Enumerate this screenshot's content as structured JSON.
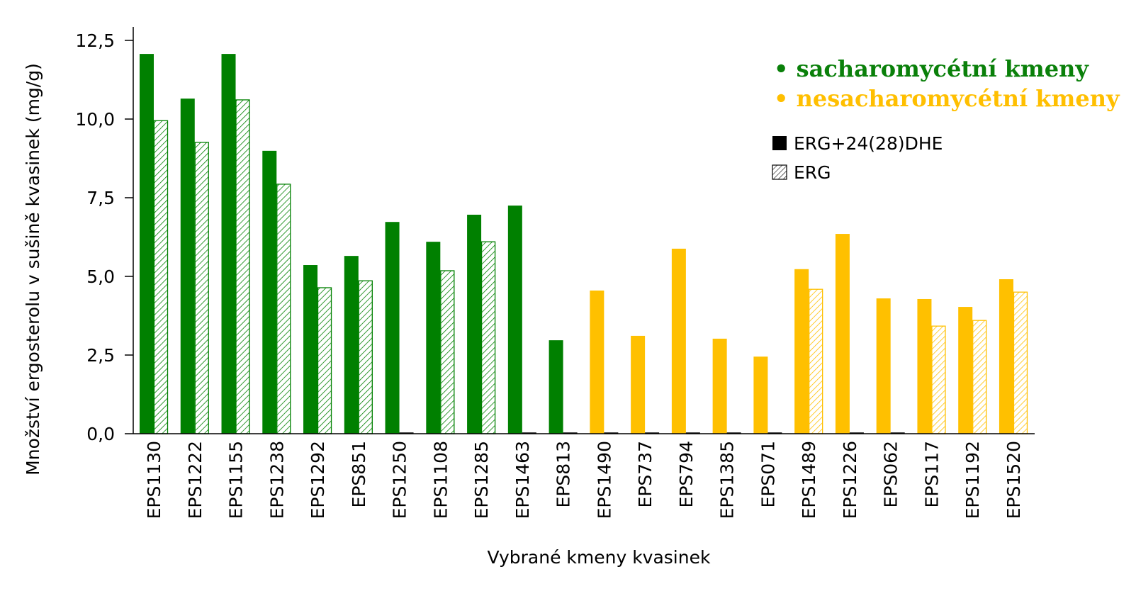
{
  "chart_data": {
    "type": "bar",
    "title": "",
    "xlabel": "Vybrané kmeny kvasinek",
    "ylabel": "Množství ergosterolu v sušině kvasinek (mg/g)",
    "ylim": [
      0,
      12.5
    ],
    "yticks": [
      "0,0",
      "2,5",
      "5,0",
      "7,5",
      "10,0",
      "12,5"
    ],
    "ytick_values": [
      0,
      2.5,
      5,
      7.5,
      10,
      12.5
    ],
    "grid": false,
    "categories": [
      "EPS1130",
      "EPS1222",
      "EPS1155",
      "EPS1238",
      "EPS1292",
      "EPS851",
      "EPS1250",
      "EPS1108",
      "EPS1285",
      "EPS1463",
      "EPS813",
      "EPS1490",
      "EPS737",
      "EPS794",
      "EPS1385",
      "EPS071",
      "EPS1489",
      "EPS1226",
      "EPS062",
      "EPS117",
      "EPS1192",
      "EPS1520"
    ],
    "group": [
      "s",
      "s",
      "s",
      "s",
      "s",
      "s",
      "s",
      "s",
      "s",
      "s",
      "s",
      "n",
      "n",
      "n",
      "n",
      "n",
      "n",
      "n",
      "n",
      "n",
      "n",
      "n"
    ],
    "series": [
      {
        "name": "ERG+24(28)DHE",
        "pattern": "solid",
        "values": [
          12.07,
          10.65,
          12.07,
          8.99,
          5.36,
          5.65,
          6.73,
          6.1,
          6.96,
          7.25,
          2.97,
          4.55,
          3.11,
          5.88,
          3.02,
          2.45,
          5.23,
          6.35,
          4.3,
          4.28,
          4.03,
          4.91
        ]
      },
      {
        "name": "ERG",
        "pattern": "hatched",
        "values": [
          9.95,
          9.26,
          10.61,
          7.93,
          4.64,
          4.86,
          0,
          5.18,
          6.1,
          0,
          0,
          0,
          0,
          0,
          0,
          0,
          4.59,
          0,
          0,
          3.42,
          3.6,
          4.5
        ]
      }
    ],
    "groups_legend": [
      {
        "label": "• sacharomycétní kmeny",
        "color": "#0a800a"
      },
      {
        "label": "• nesacharomycétní kmeny",
        "color": "#ffbf00"
      }
    ],
    "legend_placement": "top-right"
  },
  "colors": {
    "s": "#008000",
    "n": "#ffc000"
  }
}
